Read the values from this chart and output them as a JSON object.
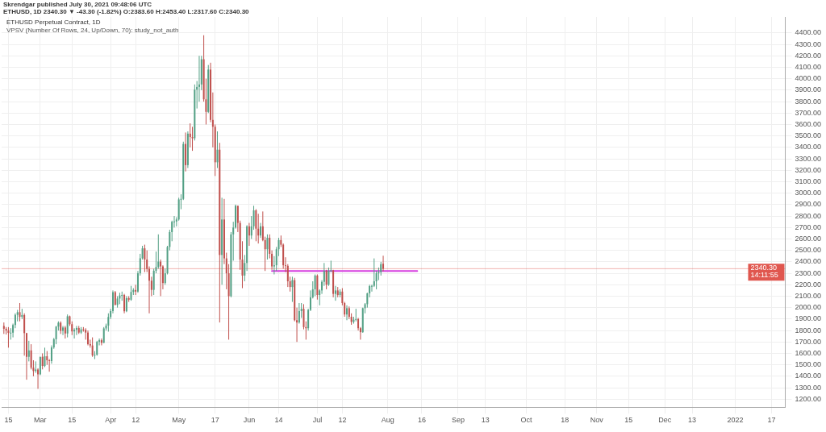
{
  "chart_data": {
    "type": "candlestick",
    "title": "ETHUSD Perpetual Contract, 1D",
    "subtitle": "VPSV (Number Of Rows, 24, Up/Down, 70): study_not_auth",
    "annotations": [
      "Skrendgar published July 30, 2021 09:48:06 UTC",
      "ETHUSD, 1D  2340.30 ▼ -43.30 (-1.82%)  O:2383.60  H:2453.40  L:2317.60  C:2340.30"
    ],
    "x": [
      "2021-02-13",
      "2021-02-14",
      "2021-02-15",
      "2021-02-16",
      "2021-02-17",
      "2021-02-18",
      "2021-02-19",
      "2021-02-20",
      "2021-02-21",
      "2021-02-22",
      "2021-02-23",
      "2021-02-24",
      "2021-02-25",
      "2021-02-26",
      "2021-02-27",
      "2021-02-28",
      "2021-03-01",
      "2021-03-02",
      "2021-03-03",
      "2021-03-04",
      "2021-03-05",
      "2021-03-06",
      "2021-03-07",
      "2021-03-08",
      "2021-03-09",
      "2021-03-10",
      "2021-03-11",
      "2021-03-12",
      "2021-03-13",
      "2021-03-14",
      "2021-03-15",
      "2021-03-16",
      "2021-03-17",
      "2021-03-18",
      "2021-03-19",
      "2021-03-20",
      "2021-03-21",
      "2021-03-22",
      "2021-03-23",
      "2021-03-24",
      "2021-03-25",
      "2021-03-26",
      "2021-03-27",
      "2021-03-28",
      "2021-03-29",
      "2021-03-30",
      "2021-03-31",
      "2021-04-01",
      "2021-04-02",
      "2021-04-03",
      "2021-04-04",
      "2021-04-05",
      "2021-04-06",
      "2021-04-07",
      "2021-04-08",
      "2021-04-09",
      "2021-04-10",
      "2021-04-11",
      "2021-04-12",
      "2021-04-13",
      "2021-04-14",
      "2021-04-15",
      "2021-04-16",
      "2021-04-17",
      "2021-04-18",
      "2021-04-19",
      "2021-04-20",
      "2021-04-21",
      "2021-04-22",
      "2021-04-23",
      "2021-04-24",
      "2021-04-25",
      "2021-04-26",
      "2021-04-27",
      "2021-04-28",
      "2021-04-29",
      "2021-04-30",
      "2021-05-01",
      "2021-05-02",
      "2021-05-03",
      "2021-05-04",
      "2021-05-05",
      "2021-05-06",
      "2021-05-07",
      "2021-05-08",
      "2021-05-09",
      "2021-05-10",
      "2021-05-11",
      "2021-05-12",
      "2021-05-13",
      "2021-05-14",
      "2021-05-15",
      "2021-05-16",
      "2021-05-17",
      "2021-05-18",
      "2021-05-19",
      "2021-05-20",
      "2021-05-21",
      "2021-05-22",
      "2021-05-23",
      "2021-05-24",
      "2021-05-25",
      "2021-05-26",
      "2021-05-27",
      "2021-05-28",
      "2021-05-29",
      "2021-05-30",
      "2021-05-31",
      "2021-06-01",
      "2021-06-02",
      "2021-06-03",
      "2021-06-04",
      "2021-06-05",
      "2021-06-06",
      "2021-06-07",
      "2021-06-08",
      "2021-06-09",
      "2021-06-10",
      "2021-06-11",
      "2021-06-12",
      "2021-06-13",
      "2021-06-14",
      "2021-06-15",
      "2021-06-16",
      "2021-06-17",
      "2021-06-18",
      "2021-06-19",
      "2021-06-20",
      "2021-06-21",
      "2021-06-22",
      "2021-06-23",
      "2021-06-24",
      "2021-06-25",
      "2021-06-26",
      "2021-06-27",
      "2021-06-28",
      "2021-06-29",
      "2021-06-30",
      "2021-07-01",
      "2021-07-02",
      "2021-07-03",
      "2021-07-04",
      "2021-07-05",
      "2021-07-06",
      "2021-07-07",
      "2021-07-08",
      "2021-07-09",
      "2021-07-10",
      "2021-07-11",
      "2021-07-12",
      "2021-07-13",
      "2021-07-14",
      "2021-07-15",
      "2021-07-16",
      "2021-07-17",
      "2021-07-18",
      "2021-07-19",
      "2021-07-20",
      "2021-07-21",
      "2021-07-22",
      "2021-07-23",
      "2021-07-24",
      "2021-07-25",
      "2021-07-26",
      "2021-07-27",
      "2021-07-28",
      "2021-07-29",
      "2021-07-30"
    ],
    "ohlc": [
      [
        1840,
        1870,
        1770,
        1815
      ],
      [
        1815,
        1830,
        1765,
        1800
      ],
      [
        1800,
        1830,
        1650,
        1779
      ],
      [
        1779,
        1820,
        1720,
        1781
      ],
      [
        1781,
        1860,
        1740,
        1848
      ],
      [
        1848,
        1950,
        1820,
        1937
      ],
      [
        1937,
        1980,
        1880,
        1960
      ],
      [
        1960,
        2040,
        1880,
        1919
      ],
      [
        1919,
        1990,
        1900,
        1935
      ],
      [
        1935,
        1950,
        1580,
        1777
      ],
      [
        1777,
        1780,
        1370,
        1570
      ],
      [
        1570,
        1710,
        1530,
        1626
      ],
      [
        1626,
        1680,
        1460,
        1475
      ],
      [
        1475,
        1540,
        1400,
        1446
      ],
      [
        1446,
        1530,
        1430,
        1459
      ],
      [
        1459,
        1470,
        1290,
        1417
      ],
      [
        1417,
        1570,
        1410,
        1570
      ],
      [
        1570,
        1600,
        1460,
        1490
      ],
      [
        1490,
        1650,
        1480,
        1575
      ],
      [
        1575,
        1620,
        1500,
        1540
      ],
      [
        1540,
        1550,
        1440,
        1533
      ],
      [
        1533,
        1670,
        1510,
        1652
      ],
      [
        1652,
        1735,
        1640,
        1724
      ],
      [
        1724,
        1840,
        1680,
        1834
      ],
      [
        1834,
        1880,
        1800,
        1868
      ],
      [
        1868,
        1880,
        1770,
        1797
      ],
      [
        1797,
        1840,
        1760,
        1826
      ],
      [
        1826,
        1840,
        1730,
        1774
      ],
      [
        1774,
        1940,
        1740,
        1924
      ],
      [
        1924,
        1930,
        1840,
        1855
      ],
      [
        1855,
        1880,
        1760,
        1792
      ],
      [
        1792,
        1820,
        1730,
        1806
      ],
      [
        1806,
        1840,
        1760,
        1822
      ],
      [
        1822,
        1840,
        1770,
        1782
      ],
      [
        1782,
        1830,
        1770,
        1810
      ],
      [
        1810,
        1830,
        1790,
        1806
      ],
      [
        1806,
        1820,
        1720,
        1782
      ],
      [
        1782,
        1800,
        1670,
        1681
      ],
      [
        1681,
        1720,
        1650,
        1669
      ],
      [
        1669,
        1740,
        1570,
        1582
      ],
      [
        1582,
        1620,
        1550,
        1588
      ],
      [
        1588,
        1710,
        1580,
        1701
      ],
      [
        1701,
        1730,
        1670,
        1715
      ],
      [
        1715,
        1730,
        1670,
        1692
      ],
      [
        1692,
        1830,
        1690,
        1818
      ],
      [
        1818,
        1860,
        1800,
        1843
      ],
      [
        1843,
        1950,
        1790,
        1918
      ],
      [
        1918,
        1990,
        1900,
        1970
      ],
      [
        1970,
        2150,
        1950,
        2135
      ],
      [
        2135,
        2145,
        2020,
        2024
      ],
      [
        2024,
        2100,
        2000,
        2079
      ],
      [
        2079,
        2130,
        2030,
        2106
      ],
      [
        2106,
        2140,
        2060,
        2110
      ],
      [
        2110,
        2120,
        1950,
        1968
      ],
      [
        1968,
        2100,
        1960,
        2083
      ],
      [
        2083,
        2100,
        2050,
        2069
      ],
      [
        2069,
        2190,
        2060,
        2137
      ],
      [
        2137,
        2170,
        2110,
        2154
      ],
      [
        2154,
        2200,
        2110,
        2140
      ],
      [
        2140,
        2320,
        2130,
        2300
      ],
      [
        2300,
        2470,
        2280,
        2431
      ],
      [
        2431,
        2540,
        2420,
        2518
      ],
      [
        2518,
        2550,
        2310,
        2420
      ],
      [
        2420,
        2500,
        2310,
        2338
      ],
      [
        2338,
        2360,
        1950,
        2235
      ],
      [
        2235,
        2270,
        2100,
        2155
      ],
      [
        2155,
        2340,
        2110,
        2322
      ],
      [
        2322,
        2490,
        2300,
        2355
      ],
      [
        2355,
        2640,
        2340,
        2402
      ],
      [
        2402,
        2420,
        2100,
        2360
      ],
      [
        2360,
        2370,
        2160,
        2215
      ],
      [
        2215,
        2340,
        2200,
        2300
      ],
      [
        2300,
        2540,
        2290,
        2530
      ],
      [
        2530,
        2680,
        2500,
        2660
      ],
      [
        2660,
        2760,
        2580,
        2750
      ],
      [
        2750,
        2800,
        2700,
        2753
      ],
      [
        2753,
        2790,
        2710,
        2770
      ],
      [
        2770,
        2960,
        2760,
        2945
      ],
      [
        2945,
        2990,
        2860,
        2950
      ],
      [
        2950,
        3450,
        2940,
        3430
      ],
      [
        3430,
        3530,
        3190,
        3245
      ],
      [
        3245,
        3540,
        3220,
        3520
      ],
      [
        3520,
        3610,
        3400,
        3490
      ],
      [
        3490,
        3580,
        3370,
        3480
      ],
      [
        3480,
        3950,
        3460,
        3905
      ],
      [
        3905,
        3980,
        3740,
        3928
      ],
      [
        3928,
        4200,
        3800,
        3950
      ],
      [
        3950,
        4200,
        3900,
        4170
      ],
      [
        4170,
        4380,
        3800,
        3820
      ],
      [
        3820,
        4000,
        3600,
        3710
      ],
      [
        3710,
        4120,
        3700,
        4080
      ],
      [
        4080,
        4140,
        3620,
        3640
      ],
      [
        3640,
        3880,
        3400,
        3580
      ],
      [
        3580,
        3600,
        3150,
        3270
      ],
      [
        3270,
        3540,
        3220,
        3380
      ],
      [
        3380,
        3440,
        1870,
        2460
      ],
      [
        2460,
        2960,
        2200,
        2770
      ],
      [
        2770,
        2950,
        2380,
        2430
      ],
      [
        2430,
        2480,
        2160,
        2300
      ],
      [
        2300,
        2380,
        1720,
        2100
      ],
      [
        2100,
        2660,
        2090,
        2640
      ],
      [
        2640,
        2750,
        2410,
        2700
      ],
      [
        2700,
        2900,
        2690,
        2890
      ],
      [
        2890,
        2890,
        2660,
        2740
      ],
      [
        2740,
        2760,
        2330,
        2420
      ],
      [
        2420,
        2580,
        2170,
        2280
      ],
      [
        2280,
        2460,
        2230,
        2390
      ],
      [
        2390,
        2720,
        2320,
        2710
      ],
      [
        2710,
        2740,
        2540,
        2630
      ],
      [
        2630,
        2800,
        2600,
        2710
      ],
      [
        2710,
        2890,
        2680,
        2850
      ],
      [
        2850,
        2860,
        2580,
        2690
      ],
      [
        2690,
        2820,
        2560,
        2630
      ],
      [
        2630,
        2740,
        2610,
        2710
      ],
      [
        2710,
        2840,
        2580,
        2590
      ],
      [
        2590,
        2620,
        2320,
        2510
      ],
      [
        2510,
        2640,
        2420,
        2610
      ],
      [
        2610,
        2640,
        2430,
        2470
      ],
      [
        2470,
        2500,
        2330,
        2360
      ],
      [
        2360,
        2450,
        2290,
        2370
      ],
      [
        2370,
        2530,
        2320,
        2510
      ],
      [
        2510,
        2610,
        2450,
        2590
      ],
      [
        2590,
        2630,
        2530,
        2550
      ],
      [
        2550,
        2560,
        2340,
        2370
      ],
      [
        2370,
        2440,
        2310,
        2365
      ],
      [
        2365,
        2380,
        2180,
        2230
      ],
      [
        2230,
        2270,
        2140,
        2180
      ],
      [
        2180,
        2270,
        2050,
        2240
      ],
      [
        2240,
        2260,
        1880,
        1890
      ],
      [
        1890,
        2000,
        1700,
        1870
      ],
      [
        1870,
        2040,
        1860,
        1970
      ],
      [
        1970,
        2040,
        1910,
        1990
      ],
      [
        1990,
        2030,
        1810,
        1830
      ],
      [
        1830,
        1880,
        1720,
        1820
      ],
      [
        1820,
        1990,
        1800,
        1980
      ],
      [
        1980,
        2150,
        1970,
        2090
      ],
      [
        2090,
        2230,
        2080,
        2160
      ],
      [
        2160,
        2290,
        2100,
        2280
      ],
      [
        2280,
        2290,
        2070,
        2110
      ],
      [
        2110,
        2160,
        2020,
        2150
      ],
      [
        2150,
        2240,
        2120,
        2225
      ],
      [
        2225,
        2390,
        2190,
        2320
      ],
      [
        2320,
        2330,
        2160,
        2200
      ],
      [
        2200,
        2350,
        2190,
        2320
      ],
      [
        2320,
        2410,
        2310,
        2325
      ],
      [
        2325,
        2330,
        2090,
        2120
      ],
      [
        2120,
        2190,
        2060,
        2150
      ],
      [
        2150,
        2180,
        2090,
        2110
      ],
      [
        2110,
        2160,
        2090,
        2140
      ],
      [
        2140,
        2170,
        2020,
        2040
      ],
      [
        2040,
        2050,
        1920,
        1940
      ],
      [
        1940,
        2020,
        1890,
        1995
      ],
      [
        1995,
        2010,
        1900,
        1920
      ],
      [
        1920,
        1950,
        1850,
        1875
      ],
      [
        1875,
        1920,
        1860,
        1895
      ],
      [
        1895,
        1990,
        1880,
        1900
      ],
      [
        1900,
        1910,
        1800,
        1820
      ],
      [
        1820,
        1830,
        1720,
        1785
      ],
      [
        1785,
        2000,
        1780,
        1995
      ],
      [
        1995,
        2040,
        1950,
        2030
      ],
      [
        2030,
        2130,
        2000,
        2125
      ],
      [
        2125,
        2200,
        2090,
        2188
      ],
      [
        2188,
        2200,
        2140,
        2190
      ],
      [
        2190,
        2430,
        2180,
        2230
      ],
      [
        2230,
        2320,
        2160,
        2300
      ],
      [
        2300,
        2350,
        2240,
        2310
      ],
      [
        2310,
        2400,
        2280,
        2380
      ],
      [
        2383.6,
        2453.4,
        2317.6,
        2340.3
      ]
    ],
    "colors": [
      "#c0504d",
      "#c0504d",
      "#c0504d",
      "#53a085",
      "#53a085",
      "#53a085",
      "#53a085",
      "#c0504d",
      "#53a085",
      "#c0504d",
      "#c0504d",
      "#53a085",
      "#c0504d",
      "#c0504d",
      "#53a085",
      "#c0504d",
      "#53a085",
      "#c0504d",
      "#53a085",
      "#c0504d",
      "#c0504d",
      "#53a085",
      "#53a085",
      "#53a085",
      "#53a085",
      "#c0504d",
      "#53a085",
      "#c0504d",
      "#53a085",
      "#c0504d",
      "#c0504d",
      "#53a085",
      "#53a085",
      "#c0504d",
      "#53a085",
      "#c0504d",
      "#c0504d",
      "#c0504d",
      "#c0504d",
      "#c0504d",
      "#53a085",
      "#53a085",
      "#53a085",
      "#c0504d",
      "#53a085",
      "#53a085",
      "#53a085",
      "#53a085",
      "#53a085",
      "#c0504d",
      "#53a085",
      "#53a085",
      "#53a085",
      "#c0504d",
      "#53a085",
      "#c0504d",
      "#53a085",
      "#53a085",
      "#c0504d",
      "#53a085",
      "#53a085",
      "#53a085",
      "#c0504d",
      "#c0504d",
      "#c0504d",
      "#c0504d",
      "#53a085",
      "#53a085",
      "#53a085",
      "#c0504d",
      "#c0504d",
      "#53a085",
      "#53a085",
      "#53a085",
      "#53a085",
      "#53a085",
      "#53a085",
      "#53a085",
      "#53a085",
      "#53a085",
      "#c0504d",
      "#53a085",
      "#c0504d",
      "#c0504d",
      "#53a085",
      "#53a085",
      "#53a085",
      "#53a085",
      "#c0504d",
      "#c0504d",
      "#53a085",
      "#c0504d",
      "#c0504d",
      "#c0504d",
      "#53a085",
      "#c0504d",
      "#53a085",
      "#c0504d",
      "#c0504d",
      "#c0504d",
      "#53a085",
      "#53a085",
      "#53a085",
      "#c0504d",
      "#c0504d",
      "#c0504d",
      "#53a085",
      "#53a085",
      "#c0504d",
      "#53a085",
      "#53a085",
      "#c0504d",
      "#c0504d",
      "#53a085",
      "#c0504d",
      "#c0504d",
      "#53a085",
      "#c0504d",
      "#c0504d",
      "#53a085",
      "#53a085",
      "#53a085",
      "#c0504d",
      "#c0504d",
      "#c0504d",
      "#c0504d",
      "#c0504d",
      "#53a085",
      "#c0504d",
      "#c0504d",
      "#53a085",
      "#53a085",
      "#c0504d",
      "#c0504d",
      "#53a085",
      "#53a085",
      "#53a085",
      "#53a085",
      "#c0504d",
      "#53a085",
      "#53a085",
      "#53a085",
      "#c0504d",
      "#53a085",
      "#53a085",
      "#c0504d",
      "#53a085",
      "#c0504d",
      "#53a085",
      "#c0504d",
      "#c0504d",
      "#53a085",
      "#c0504d",
      "#c0504d",
      "#53a085",
      "#53a085",
      "#c0504d",
      "#c0504d",
      "#53a085",
      "#53a085",
      "#53a085",
      "#53a085",
      "#53a085",
      "#53a085",
      "#53a085",
      "#53a085",
      "#53a085",
      "#c0504d"
    ],
    "series": [
      {
        "type": "line",
        "x": [
          "2021-06-11",
          "2021-08-14"
        ],
        "values": [
          2320,
          2320
        ],
        "color": "#d63fe0"
      }
    ],
    "ref_lines": [
      {
        "axis": "y",
        "value": 2340.3,
        "label": "2340.30\n14:11:55",
        "color": "#e0574f"
      }
    ],
    "xlim": [
      "2021-02-12",
      "2022-01-23"
    ],
    "xticks": [
      {
        "value": "2021-02-15",
        "label": "15"
      },
      {
        "value": "2021-03-01",
        "label": "Mar"
      },
      {
        "value": "2021-03-15",
        "label": "15"
      },
      {
        "value": "2021-04-01",
        "label": "Apr"
      },
      {
        "value": "2021-04-12",
        "label": "12"
      },
      {
        "value": "2021-05-01",
        "label": "May"
      },
      {
        "value": "2021-05-17",
        "label": "17"
      },
      {
        "value": "2021-06-01",
        "label": "Jun"
      },
      {
        "value": "2021-06-14",
        "label": "14"
      },
      {
        "value": "2021-07-01",
        "label": "Jul"
      },
      {
        "value": "2021-07-12",
        "label": "12"
      },
      {
        "value": "2021-08-01",
        "label": "Aug"
      },
      {
        "value": "2021-08-16",
        "label": "16"
      },
      {
        "value": "2021-09-01",
        "label": "Sep"
      },
      {
        "value": "2021-09-13",
        "label": "13"
      },
      {
        "value": "2021-10-01",
        "label": "Oct"
      },
      {
        "value": "2021-10-18",
        "label": "18"
      },
      {
        "value": "2021-11-01",
        "label": "Nov"
      },
      {
        "value": "2021-11-15",
        "label": "15"
      },
      {
        "value": "2021-12-01",
        "label": "Dec"
      },
      {
        "value": "2021-12-13",
        "label": "13"
      },
      {
        "value": "2022-01-01",
        "label": "2022"
      },
      {
        "value": "2022-01-17",
        "label": "17"
      }
    ],
    "ylim": [
      1130,
      4540
    ],
    "yticks": [
      {
        "value": 1200,
        "label": "1200.00"
      },
      {
        "value": 1300,
        "label": "1300.00"
      },
      {
        "value": 1400,
        "label": "1400.00"
      },
      {
        "value": 1500,
        "label": "1500.00"
      },
      {
        "value": 1600,
        "label": "1600.00"
      },
      {
        "value": 1700,
        "label": "1700.00"
      },
      {
        "value": 1800,
        "label": "1800.00"
      },
      {
        "value": 1900,
        "label": "1900.00"
      },
      {
        "value": 2000,
        "label": "2000.00"
      },
      {
        "value": 2100,
        "label": "2100.00"
      },
      {
        "value": 2200,
        "label": "2200.00"
      },
      {
        "value": 2300,
        "label": "2300.00"
      },
      {
        "value": 2400,
        "label": "2400.00"
      },
      {
        "value": 2500,
        "label": "2500.00"
      },
      {
        "value": 2600,
        "label": "2600.00"
      },
      {
        "value": 2700,
        "label": "2700.00"
      },
      {
        "value": 2800,
        "label": "2800.00"
      },
      {
        "value": 2900,
        "label": "2900.00"
      },
      {
        "value": 3000,
        "label": "3000.00"
      },
      {
        "value": 3100,
        "label": "3100.00"
      },
      {
        "value": 3200,
        "label": "3200.00"
      },
      {
        "value": 3300,
        "label": "3300.00"
      },
      {
        "value": 3400,
        "label": "3400.00"
      },
      {
        "value": 3500,
        "label": "3500.00"
      },
      {
        "value": 3600,
        "label": "3600.00"
      },
      {
        "value": 3700,
        "label": "3700.00"
      },
      {
        "value": 3800,
        "label": "3800.00"
      },
      {
        "value": 3900,
        "label": "3900.00"
      },
      {
        "value": 4000,
        "label": "4000.00"
      },
      {
        "value": 4100,
        "label": "4100.00"
      },
      {
        "value": 4200,
        "label": "4200.00"
      },
      {
        "value": 4300,
        "label": "4300.00"
      },
      {
        "value": 4400,
        "label": "4400.00"
      }
    ],
    "grid": true
  }
}
